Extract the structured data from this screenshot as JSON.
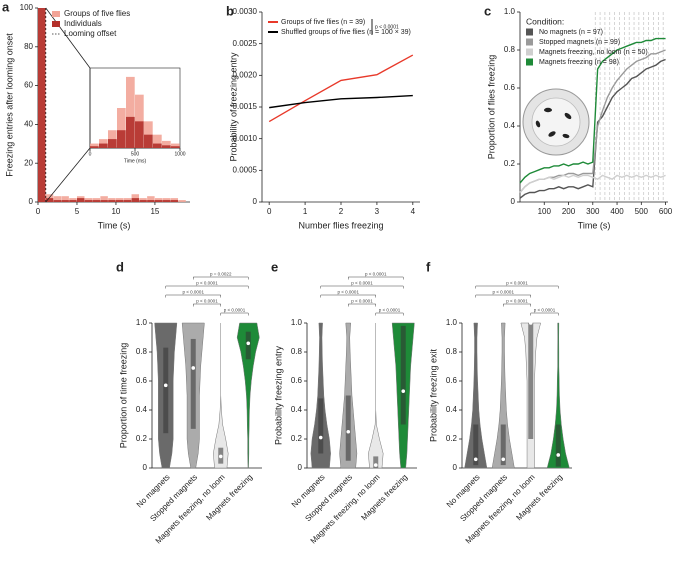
{
  "chart_data": [
    {
      "type": "histogram",
      "panel": "a",
      "xlabel": "Time (s)",
      "ylabel": "Freezing entries after looming onset",
      "bins": [
        0,
        1,
        2,
        3,
        4,
        5,
        6,
        7,
        8,
        9,
        10,
        11,
        12,
        13,
        14,
        15,
        16,
        17,
        18,
        19
      ],
      "series": [
        {
          "name": "Groups of five flies",
          "color": "#f2a497",
          "values": [
            100,
            4,
            3,
            3,
            2,
            3,
            2,
            2,
            3,
            2,
            2,
            2,
            4,
            2,
            3,
            2,
            2,
            2,
            1
          ]
        },
        {
          "name": "Individuals",
          "color": "#b3302a",
          "values": [
            100,
            2,
            1,
            1,
            1,
            2,
            1,
            1,
            1,
            1,
            1,
            1,
            2,
            1,
            1,
            1,
            1,
            1,
            0
          ]
        }
      ],
      "offset_label": "Looming offset",
      "looming_offset": 1,
      "xlim": [
        0,
        19.5
      ],
      "xticks": [
        0,
        5,
        10,
        15
      ],
      "ylim": [
        0,
        100
      ],
      "yticks": [
        0,
        20,
        40,
        60,
        80,
        100
      ]
    },
    {
      "type": "histogram",
      "xlabel": "Time (ms)",
      "bins": [
        0,
        100,
        200,
        300,
        400,
        500,
        600,
        700,
        800,
        900,
        1000
      ],
      "series": [
        {
          "name": "Groups of five flies",
          "color": "#f2a497",
          "values": [
            5,
            10,
            20,
            45,
            80,
            60,
            30,
            15,
            8,
            5
          ]
        },
        {
          "name": "Individuals",
          "color": "#b3302a",
          "values": [
            2,
            5,
            10,
            20,
            35,
            30,
            15,
            5,
            3,
            2
          ]
        }
      ],
      "xlim": [
        0,
        1000
      ],
      "xticks": [
        0,
        500,
        1000
      ],
      "ylim": [
        0,
        90
      ],
      "yticks": []
    },
    {
      "type": "line",
      "panel": "b",
      "xlabel": "Number flies freezing",
      "ylabel": "Probability of freezing entry",
      "x": [
        0,
        1,
        2,
        3,
        4
      ],
      "series": [
        {
          "name": "Groups of five flies (n = 39)",
          "color": "#e8392a",
          "values": [
            0.00127,
            0.0016,
            0.00192,
            0.00201,
            0.00232
          ]
        },
        {
          "name": "Shuffled groups of five flies (n = 100 × 39)",
          "color": "#000000",
          "values": [
            0.00149,
            0.00157,
            0.00163,
            0.00165,
            0.00168
          ]
        }
      ],
      "annotation": "p < 0.0001",
      "xlim": [
        -0.2,
        4.2
      ],
      "xticks": [
        0,
        1,
        2,
        3,
        4
      ],
      "ylim": [
        0,
        0.003
      ],
      "yticks": [
        0,
        0.0005,
        {
          "value": 0.001,
          "label": "0.0010"
        },
        0.0015,
        {
          "value": 0.002,
          "label": "0.0020"
        },
        0.0025,
        {
          "value": 0.003,
          "label": "0.0030"
        }
      ]
    },
    {
      "type": "line",
      "panel": "c",
      "xlabel": "Time (s)",
      "ylabel": "Proportion of flies freezing",
      "legend_title": "Condition:",
      "x": [
        0,
        20,
        40,
        60,
        80,
        100,
        120,
        140,
        160,
        180,
        200,
        220,
        240,
        260,
        280,
        300,
        320,
        340,
        360,
        380,
        400,
        420,
        440,
        460,
        480,
        500,
        520,
        540,
        560,
        580,
        600
      ],
      "series": [
        {
          "name": "No magnets (n = 97)",
          "color": "#555555",
          "values": [
            0.02,
            0.04,
            0.05,
            0.05,
            0.06,
            0.06,
            0.07,
            0.07,
            0.08,
            0.07,
            0.08,
            0.08,
            0.07,
            0.08,
            0.09,
            0.08,
            0.42,
            0.45,
            0.5,
            0.55,
            0.58,
            0.6,
            0.62,
            0.65,
            0.66,
            0.68,
            0.7,
            0.71,
            0.72,
            0.74,
            0.75
          ]
        },
        {
          "name": "Stopped magnets (n = 99)",
          "color": "#9a9a9a",
          "values": [
            0.05,
            0.08,
            0.1,
            0.11,
            0.12,
            0.12,
            0.13,
            0.13,
            0.14,
            0.14,
            0.15,
            0.15,
            0.14,
            0.15,
            0.15,
            0.15,
            0.4,
            0.48,
            0.55,
            0.6,
            0.64,
            0.67,
            0.7,
            0.72,
            0.74,
            0.75,
            0.76,
            0.78,
            0.78,
            0.79,
            0.8
          ]
        },
        {
          "name": "Magnets freezing, no loom (n = 50)",
          "color": "#cfcfcf",
          "values": [
            0.05,
            0.08,
            0.1,
            0.11,
            0.12,
            0.12,
            0.13,
            0.12,
            0.13,
            0.14,
            0.13,
            0.14,
            0.13,
            0.14,
            0.14,
            0.13,
            0.12,
            0.14,
            0.13,
            0.12,
            0.14,
            0.13,
            0.14,
            0.13,
            0.14,
            0.13,
            0.14,
            0.13,
            0.14,
            0.13,
            0.14
          ]
        },
        {
          "name": "Magnets freezing (n = 98)",
          "color": "#1e8a38",
          "values": [
            0.1,
            0.13,
            0.15,
            0.16,
            0.17,
            0.18,
            0.18,
            0.19,
            0.19,
            0.2,
            0.19,
            0.2,
            0.2,
            0.21,
            0.2,
            0.21,
            0.7,
            0.74,
            0.76,
            0.78,
            0.8,
            0.81,
            0.82,
            0.83,
            0.84,
            0.84,
            0.85,
            0.85,
            0.86,
            0.86,
            0.86
          ]
        }
      ],
      "looms": [
        310,
        330,
        350,
        370,
        390,
        410,
        430,
        450,
        470,
        490,
        510,
        530,
        550,
        570,
        590
      ],
      "xlim": [
        0,
        610
      ],
      "xticks": [
        100,
        200,
        300,
        400,
        500,
        600
      ],
      "ylim": [
        0,
        1
      ],
      "yticks": [
        0,
        0.2,
        0.4,
        0.6,
        0.8,
        {
          "value": 1,
          "label": "1.0"
        }
      ]
    },
    {
      "type": "violin",
      "panel": "d",
      "ylabel": "Proportion of time freezing",
      "categories": [
        "No magnets",
        "Stopped magnets",
        "Magnets freezing, no loom",
        "Magnets freezing"
      ],
      "levels": [
        0,
        0.1,
        0.2,
        0.3,
        0.4,
        0.5,
        0.6,
        0.7,
        0.8,
        0.9,
        1
      ],
      "violins": [
        {
          "color": "#6a6a6a",
          "q1": 0.24,
          "median": 0.57,
          "q3": 0.83,
          "widths": [
            0.3,
            0.5,
            0.6,
            0.6,
            0.6,
            0.6,
            0.6,
            0.65,
            0.7,
            0.8,
            0.9
          ]
        },
        {
          "color": "#ababab",
          "q1": 0.27,
          "median": 0.69,
          "q3": 0.89,
          "widths": [
            0.2,
            0.4,
            0.5,
            0.5,
            0.5,
            0.5,
            0.55,
            0.6,
            0.7,
            0.8,
            0.9
          ]
        },
        {
          "color": "#e8e8e8",
          "q1": 0.03,
          "median": 0.08,
          "q3": 0.14,
          "widths": [
            0.5,
            0.6,
            0.4,
            0.15,
            0.05,
            0,
            0,
            0,
            0,
            0,
            0
          ]
        },
        {
          "color": "#1e8a38",
          "q1": 0.75,
          "median": 0.86,
          "q3": 0.94,
          "widths": [
            0.02,
            0.05,
            0.05,
            0.08,
            0.1,
            0.15,
            0.25,
            0.4,
            0.6,
            0.9,
            0.7
          ]
        }
      ],
      "brackets": [
        {
          "from": 1,
          "to": 3,
          "label": "p = 0.0022"
        },
        {
          "from": 0,
          "to": 3,
          "label": "p < 0.0001"
        },
        {
          "from": 0,
          "to": 2,
          "label": "p < 0.0001"
        },
        {
          "from": 1,
          "to": 2,
          "label": "p < 0.0001"
        },
        {
          "from": 2,
          "to": 3,
          "label": "p < 0.0001"
        }
      ],
      "ylim": [
        0,
        1
      ],
      "yticks": [
        0,
        0.2,
        0.4,
        0.6,
        0.8,
        {
          "value": 1,
          "label": "1.0"
        }
      ]
    },
    {
      "type": "violin",
      "panel": "e",
      "ylabel": "Probability freezing entry",
      "categories": [
        "No magnets",
        "Stopped magnets",
        "Magnets freezing, no loom",
        "Magnets freezing"
      ],
      "levels": [
        0,
        0.1,
        0.2,
        0.3,
        0.4,
        0.5,
        0.6,
        0.7,
        0.8,
        0.9,
        1
      ],
      "violins": [
        {
          "color": "#6a6a6a",
          "q1": 0.1,
          "median": 0.21,
          "q3": 0.48,
          "widths": [
            0.7,
            0.8,
            0.7,
            0.5,
            0.35,
            0.25,
            0.2,
            0.15,
            0.12,
            0.1,
            0.15
          ]
        },
        {
          "color": "#ababab",
          "q1": 0.05,
          "median": 0.25,
          "q3": 0.5,
          "widths": [
            0.6,
            0.7,
            0.6,
            0.5,
            0.4,
            0.3,
            0.25,
            0.2,
            0.15,
            0.12,
            0.2
          ]
        },
        {
          "color": "#e8e8e8",
          "q1": 0,
          "median": 0.02,
          "q3": 0.08,
          "widths": [
            0.5,
            0.6,
            0.3,
            0.05,
            0,
            0,
            0,
            0,
            0,
            0,
            0
          ]
        },
        {
          "color": "#1e8a38",
          "q1": 0.3,
          "median": 0.53,
          "q3": 0.98,
          "widths": [
            0.2,
            0.3,
            0.35,
            0.4,
            0.45,
            0.5,
            0.55,
            0.6,
            0.7,
            0.8,
            0.9
          ]
        }
      ],
      "brackets": [
        {
          "from": 1,
          "to": 3,
          "label": "p < 0.0001"
        },
        {
          "from": 0,
          "to": 3,
          "label": "p < 0.0001"
        },
        {
          "from": 0,
          "to": 2,
          "label": "p < 0.0001"
        },
        {
          "from": 1,
          "to": 2,
          "label": "p < 0.0001"
        },
        {
          "from": 2,
          "to": 3,
          "label": "p < 0.0001"
        }
      ],
      "ylim": [
        0,
        1
      ],
      "yticks": [
        0,
        0.2,
        0.4,
        0.6,
        0.8,
        {
          "value": 1,
          "label": "1.0"
        }
      ]
    },
    {
      "type": "violin",
      "panel": "f",
      "ylabel": "Probability freezing exit",
      "categories": [
        "No magnets",
        "Stopped magnets",
        "Magnets freezing, no loom",
        "Magnets freezing"
      ],
      "levels": [
        0,
        0.1,
        0.2,
        0.3,
        0.4,
        0.5,
        0.6,
        0.7,
        0.8,
        0.9,
        1
      ],
      "violins": [
        {
          "color": "#6a6a6a",
          "q1": 0.02,
          "median": 0.06,
          "q3": 0.3,
          "widths": [
            0.9,
            0.7,
            0.5,
            0.35,
            0.25,
            0.2,
            0.15,
            0.12,
            0.1,
            0.1,
            0.15
          ]
        },
        {
          "color": "#ababab",
          "q1": 0.02,
          "median": 0.06,
          "q3": 0.3,
          "widths": [
            0.9,
            0.7,
            0.5,
            0.35,
            0.25,
            0.2,
            0.15,
            0.12,
            0.1,
            0.1,
            0.15
          ]
        },
        {
          "color": "#e8e8e8",
          "q1": 0.2,
          "median": 1,
          "q3": 1,
          "widths": [
            0.3,
            0.3,
            0.3,
            0.3,
            0.3,
            0.3,
            0.3,
            0.35,
            0.4,
            0.5,
            0.8
          ]
        },
        {
          "color": "#1e8a38",
          "q1": 0.01,
          "median": 0.09,
          "q3": 0.3,
          "widths": [
            0.9,
            0.6,
            0.4,
            0.25,
            0.15,
            0.1,
            0.08,
            0.05,
            0.05,
            0.04,
            0.05
          ]
        }
      ],
      "brackets": [
        {
          "from": 0,
          "to": 3,
          "label": "p < 0.0001"
        },
        {
          "from": 0,
          "to": 2,
          "label": "p < 0.0001"
        },
        {
          "from": 1,
          "to": 2,
          "label": "p < 0.0001"
        },
        {
          "from": 2,
          "to": 3,
          "label": "p < 0.0001"
        }
      ],
      "ylim": [
        0,
        1
      ],
      "yticks": [
        0,
        0.2,
        0.4,
        0.6,
        0.8,
        {
          "value": 1,
          "label": "1.0"
        }
      ]
    }
  ]
}
